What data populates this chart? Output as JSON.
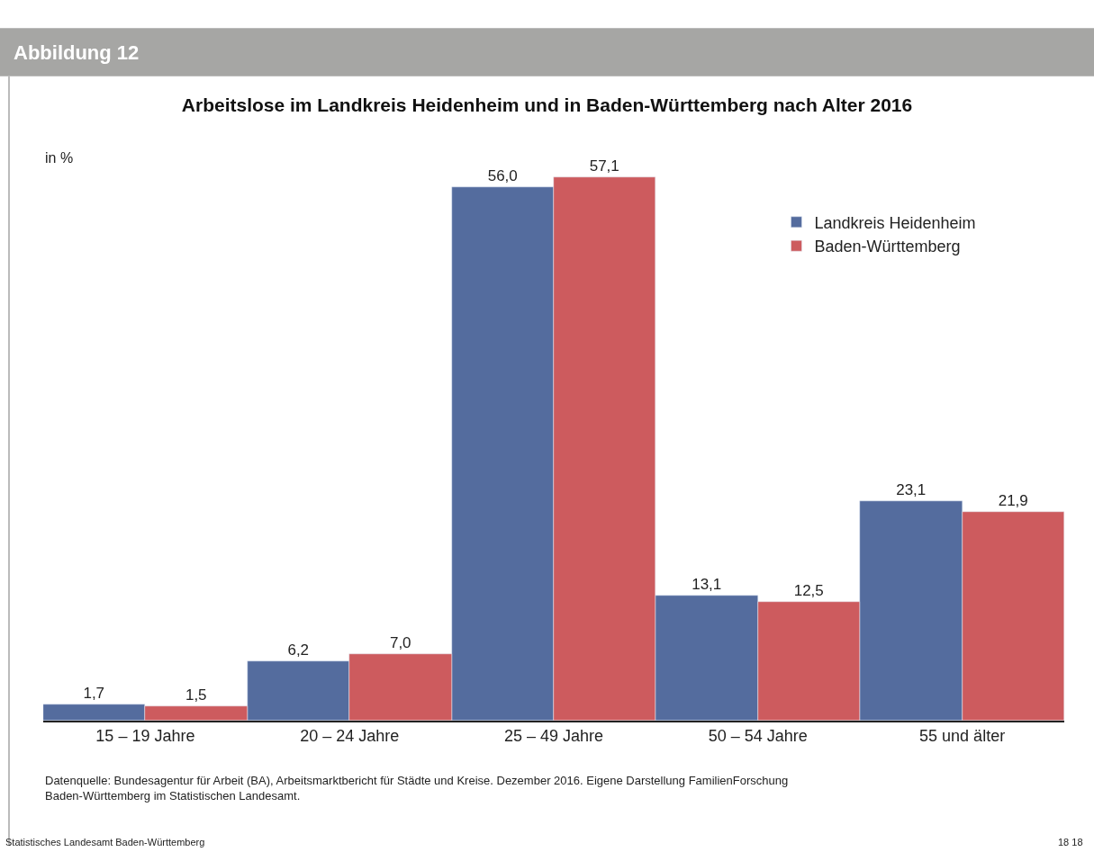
{
  "chart_data": {
    "type": "bar",
    "title": "Arbeitslose im Landkreis Heidenheim und in Baden-Württemberg nach Alter 2016",
    "ylabel": "in %",
    "categories": [
      "15 – 19 Jahre",
      "20 – 24 Jahre",
      "25 – 49 Jahre",
      "50 – 54 Jahre",
      "55 und älter"
    ],
    "series": [
      {
        "name": "Landkreis Heidenheim",
        "color": "#546c9e",
        "values": [
          1.7,
          6.2,
          56.0,
          13.1,
          23.1
        ],
        "value_labels": [
          "1,7",
          "6,2",
          "56,0",
          "13,1",
          "23,1"
        ]
      },
      {
        "name": "Baden-Württemberg",
        "color": "#cd5b5e",
        "values": [
          1.5,
          7.0,
          57.1,
          12.5,
          21.9
        ],
        "value_labels": [
          "1,5",
          "7,0",
          "57,1",
          "12,5",
          "21,9"
        ]
      }
    ],
    "tick_labels": "x",
    "legend": "top right",
    "annotations": [
      "Abbildung 12",
      "Datenquelle: Bundesagentur für Arbeit (BA), Arbeitsmarktbericht für Städte und Kreise. Dezember 2016. Eigene Darstellung FamilienForschung\nBaden-Württemberg im Statistischen Landesamt.",
      "Statistisches Landesamt Baden-Württemberg",
      "18 18"
    ]
  }
}
